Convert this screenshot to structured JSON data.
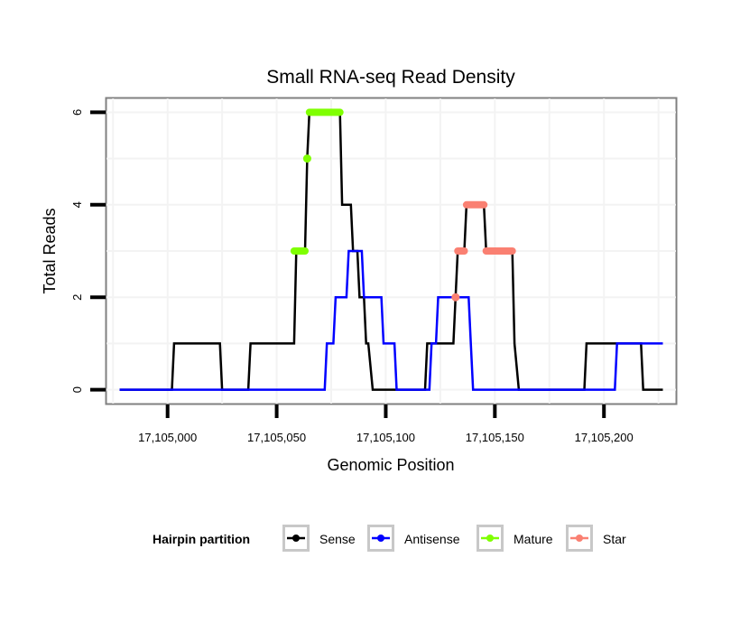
{
  "chart_data": {
    "type": "line",
    "title": "Small RNA-seq Read Density",
    "xlabel": "Genomic Position",
    "ylabel": "Total Reads",
    "xlim": [
      17104972,
      17105233
    ],
    "ylim": [
      -0.3,
      6.3
    ],
    "x_ticks": [
      17105000,
      17105050,
      17105100,
      17105150,
      17105200
    ],
    "x_tick_labels": [
      "17,105,000",
      "17,105,050",
      "17,105,100",
      "17,105,150",
      "17,105,200"
    ],
    "y_ticks": [
      0,
      2,
      4,
      6
    ],
    "y_tick_labels": [
      "0",
      "2",
      "4",
      "6"
    ],
    "grid": true,
    "legend": {
      "title": "Hairpin partition",
      "position": "bottom",
      "entries": [
        {
          "name": "Sense",
          "color": "#000000"
        },
        {
          "name": "Antisense",
          "color": "#0000ff"
        },
        {
          "name": "Mature",
          "color": "#7fff00"
        },
        {
          "name": "Star",
          "color": "#fa8072"
        }
      ]
    },
    "series": [
      {
        "name": "Sense",
        "color": "#000000",
        "points": [
          [
            17104978,
            0
          ],
          [
            17105002,
            0
          ],
          [
            17105003,
            1
          ],
          [
            17105024,
            1
          ],
          [
            17105025,
            0
          ],
          [
            17105037,
            0
          ],
          [
            17105038,
            1
          ],
          [
            17105058,
            1
          ],
          [
            17105059,
            3
          ],
          [
            17105063,
            3
          ],
          [
            17105064,
            5
          ],
          [
            17105065,
            6
          ],
          [
            17105079,
            6
          ],
          [
            17105080,
            4
          ],
          [
            17105084,
            4
          ],
          [
            17105085,
            3
          ],
          [
            17105087,
            3
          ],
          [
            17105088,
            2
          ],
          [
            17105090,
            2
          ],
          [
            17105091,
            1
          ],
          [
            17105092,
            1
          ],
          [
            17105094,
            0
          ],
          [
            17105118,
            0
          ],
          [
            17105119,
            1
          ],
          [
            17105131,
            1
          ],
          [
            17105132,
            2
          ],
          [
            17105133,
            3
          ],
          [
            17105136,
            3
          ],
          [
            17105137,
            4
          ],
          [
            17105145,
            4
          ],
          [
            17105146,
            3
          ],
          [
            17105158,
            3
          ],
          [
            17105159,
            1
          ],
          [
            17105161,
            0
          ],
          [
            17105191,
            0
          ],
          [
            17105192,
            1
          ],
          [
            17105217,
            1
          ],
          [
            17105218,
            0
          ],
          [
            17105227,
            0
          ]
        ]
      },
      {
        "name": "Antisense",
        "color": "#0000ff",
        "points": [
          [
            17104978,
            0
          ],
          [
            17105072,
            0
          ],
          [
            17105073,
            1
          ],
          [
            17105076,
            1
          ],
          [
            17105077,
            2
          ],
          [
            17105082,
            2
          ],
          [
            17105083,
            3
          ],
          [
            17105089,
            3
          ],
          [
            17105090,
            2
          ],
          [
            17105098,
            2
          ],
          [
            17105099,
            1
          ],
          [
            17105104,
            1
          ],
          [
            17105105,
            0
          ],
          [
            17105120,
            0
          ],
          [
            17105121,
            1
          ],
          [
            17105123,
            1
          ],
          [
            17105124,
            2
          ],
          [
            17105138,
            2
          ],
          [
            17105139,
            1
          ],
          [
            17105140,
            0
          ],
          [
            17105205,
            0
          ],
          [
            17105206,
            1
          ],
          [
            17105227,
            1
          ]
        ]
      },
      {
        "name": "Mature",
        "color": "#7fff00",
        "segments": [
          {
            "x": [
              17105058,
              17105063
            ],
            "y": 3
          },
          {
            "x": [
              17105064,
              17105064
            ],
            "y": 5
          },
          {
            "x": [
              17105065,
              17105079
            ],
            "y": 6
          }
        ]
      },
      {
        "name": "Star",
        "color": "#fa8072",
        "segments": [
          {
            "x": [
              17105132,
              17105132
            ],
            "y": 2
          },
          {
            "x": [
              17105133,
              17105136
            ],
            "y": 3
          },
          {
            "x": [
              17105137,
              17105145
            ],
            "y": 4
          },
          {
            "x": [
              17105146,
              17105158
            ],
            "y": 3
          }
        ]
      }
    ]
  }
}
